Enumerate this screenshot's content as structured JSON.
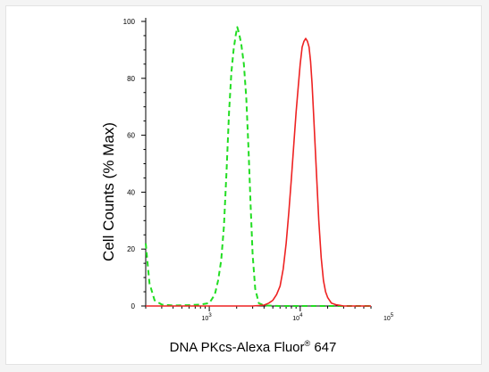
{
  "chart_data": {
    "type": "line",
    "title": "",
    "xlabel": "DNA PKcs-Alexa Fluor",
    "xlabel_superscript": "®",
    "xlabel_suffix": " 647",
    "ylabel": "Cell Counts (% Max)",
    "x_scale": "log",
    "xlim": [
      200,
      60000
    ],
    "ylim": [
      0,
      100
    ],
    "y_ticks": [
      0,
      20,
      40,
      60,
      80,
      100
    ],
    "x_tick_labels": [
      {
        "base": "10",
        "exp": "3",
        "value": 1000
      },
      {
        "base": "10",
        "exp": "4",
        "value": 10000
      },
      {
        "base": "10",
        "exp": "5",
        "value": 100000
      }
    ],
    "grid": false,
    "series": [
      {
        "color": "#22dd22",
        "style": "dashed",
        "points": [
          [
            200,
            22
          ],
          [
            220,
            8
          ],
          [
            250,
            2
          ],
          [
            300,
            0.5
          ],
          [
            400,
            0.2
          ],
          [
            600,
            0.3
          ],
          [
            800,
            0.5
          ],
          [
            1000,
            1
          ],
          [
            1150,
            4
          ],
          [
            1250,
            9
          ],
          [
            1350,
            16
          ],
          [
            1450,
            28
          ],
          [
            1550,
            48
          ],
          [
            1650,
            68
          ],
          [
            1750,
            82
          ],
          [
            1850,
            90
          ],
          [
            1950,
            95
          ],
          [
            2030,
            98
          ],
          [
            2120,
            96
          ],
          [
            2250,
            92
          ],
          [
            2400,
            85
          ],
          [
            2550,
            73
          ],
          [
            2700,
            55
          ],
          [
            2850,
            35
          ],
          [
            3000,
            18
          ],
          [
            3200,
            6
          ],
          [
            3500,
            1
          ],
          [
            4000,
            0.2
          ],
          [
            6000,
            0
          ],
          [
            60000,
            0
          ]
        ]
      },
      {
        "color": "#ee2222",
        "style": "solid",
        "points": [
          [
            200,
            0
          ],
          [
            3000,
            0
          ],
          [
            4000,
            0.3
          ],
          [
            4500,
            1
          ],
          [
            5000,
            2
          ],
          [
            5500,
            4
          ],
          [
            6000,
            7
          ],
          [
            6500,
            13
          ],
          [
            7000,
            22
          ],
          [
            7500,
            33
          ],
          [
            8000,
            45
          ],
          [
            8500,
            57
          ],
          [
            9000,
            68
          ],
          [
            9500,
            77
          ],
          [
            10000,
            85
          ],
          [
            10500,
            91
          ],
          [
            11000,
            93
          ],
          [
            11500,
            94
          ],
          [
            12000,
            93
          ],
          [
            12500,
            91
          ],
          [
            13000,
            86
          ],
          [
            13500,
            78
          ],
          [
            14000,
            68
          ],
          [
            15000,
            48
          ],
          [
            16000,
            30
          ],
          [
            17000,
            17
          ],
          [
            18000,
            9
          ],
          [
            19000,
            5
          ],
          [
            20000,
            3
          ],
          [
            22000,
            1
          ],
          [
            25000,
            0.4
          ],
          [
            30000,
            0
          ],
          [
            60000,
            0
          ]
        ]
      }
    ]
  }
}
